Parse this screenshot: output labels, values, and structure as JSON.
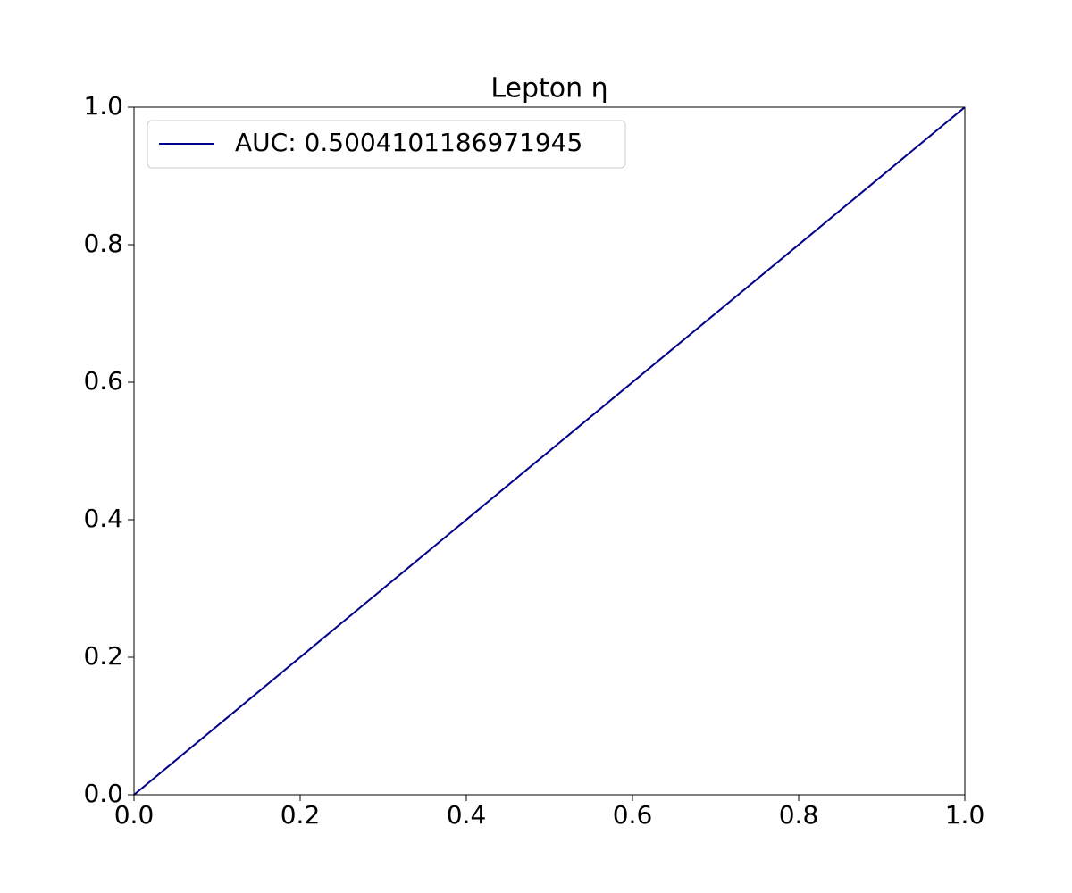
{
  "chart_data": {
    "type": "line",
    "title": "Lepton η",
    "x": [
      0,
      1
    ],
    "series": [
      {
        "color": "#a0a0a0",
        "dashed": true,
        "values": [
          0,
          1
        ]
      },
      {
        "name": "AUC: 0.5004101186971945",
        "color": "#00008b",
        "values": [
          0,
          1
        ]
      }
    ],
    "xlim": [
      0,
      1
    ],
    "ylim": [
      0,
      1
    ],
    "xticks": [
      {
        "value": 0,
        "label": "0.0"
      },
      0.2,
      0.4,
      0.6,
      0.8,
      {
        "value": 1,
        "label": "1.0"
      }
    ],
    "yticks": [
      {
        "value": 0,
        "label": "0.0"
      },
      0.2,
      0.4,
      0.6,
      0.8,
      {
        "value": 1,
        "label": "1.0"
      }
    ],
    "grid": false,
    "legend": "upper left"
  }
}
